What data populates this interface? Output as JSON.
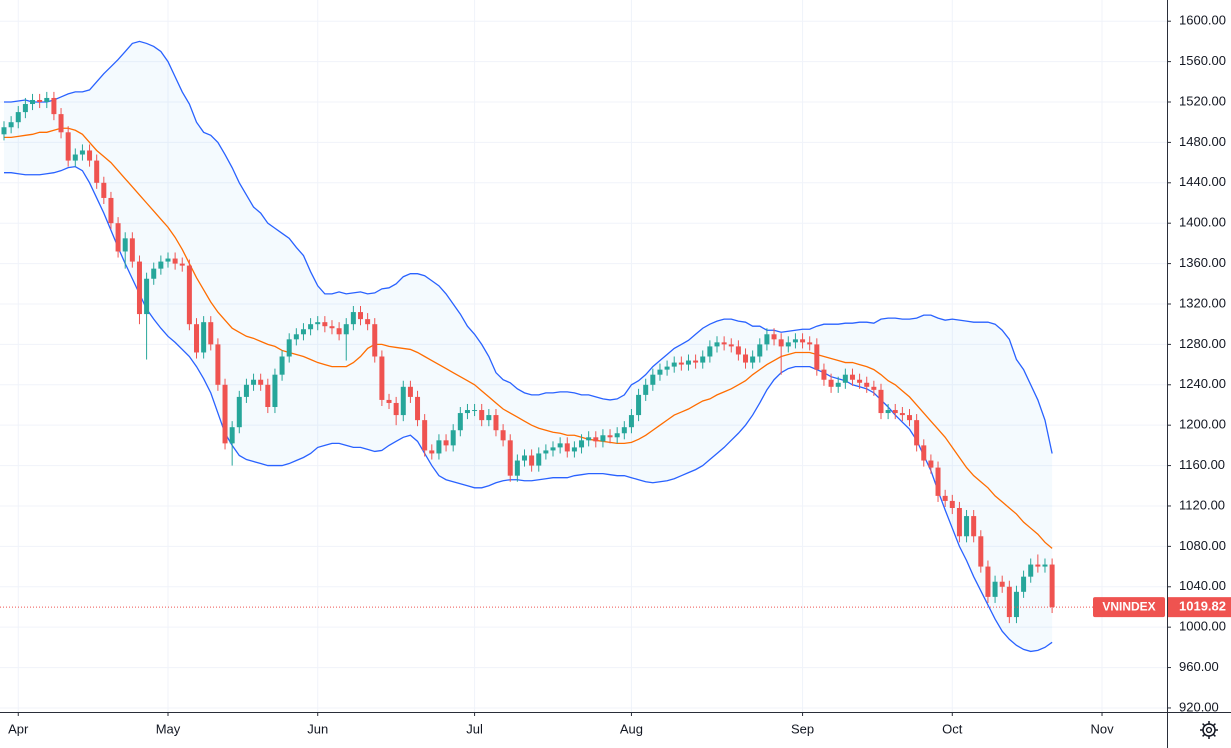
{
  "chart_data": {
    "type": "candlestick",
    "symbol": "VNINDEX",
    "up_color": "#26a69a",
    "down_color": "#ef5350",
    "band_color": "#2962ff",
    "middle_color": "#ff6d00",
    "band_fill": "#2196f3",
    "grid": true,
    "categories": [
      null,
      null,
      "Apr",
      null,
      null,
      null,
      null,
      null,
      null,
      null,
      null,
      null,
      null,
      null,
      null,
      null,
      null,
      null,
      null,
      null,
      null,
      null,
      null,
      "May",
      null,
      null,
      null,
      null,
      null,
      null,
      null,
      null,
      null,
      null,
      null,
      null,
      null,
      null,
      null,
      null,
      null,
      null,
      null,
      null,
      "Jun",
      null,
      null,
      null,
      null,
      null,
      null,
      null,
      null,
      null,
      null,
      null,
      null,
      null,
      null,
      null,
      null,
      null,
      null,
      null,
      null,
      null,
      "Jul",
      null,
      null,
      null,
      null,
      null,
      null,
      null,
      null,
      null,
      null,
      null,
      null,
      null,
      null,
      null,
      null,
      null,
      null,
      null,
      null,
      null,
      "Aug",
      null,
      null,
      null,
      null,
      null,
      null,
      null,
      null,
      null,
      null,
      null,
      null,
      null,
      null,
      null,
      null,
      null,
      null,
      null,
      null,
      null,
      null,
      null,
      "Sep",
      null,
      null,
      null,
      null,
      null,
      null,
      null,
      null,
      null,
      null,
      null,
      null,
      null,
      null,
      null,
      null,
      null,
      null,
      null,
      null,
      "Oct",
      null,
      null,
      null,
      null,
      null,
      null,
      null,
      null,
      null,
      null,
      null,
      null,
      null,
      null,
      null,
      null,
      null,
      null,
      null,
      null,
      "Nov"
    ],
    "open": [
      1488,
      1495,
      1500,
      1510,
      1518,
      1522,
      1520,
      1524,
      1508,
      1490,
      1462,
      1468,
      1472,
      1462,
      1440,
      1425,
      1400,
      1372,
      1385,
      1362,
      1310,
      1345,
      1355,
      1362,
      1365,
      1360,
      1358,
      1300,
      1272,
      1302,
      1280,
      1240,
      1182,
      1198,
      1228,
      1240,
      1245,
      1240,
      1218,
      1250,
      1268,
      1285,
      1290,
      1295,
      1300,
      1302,
      1298,
      1296,
      1290,
      1300,
      1312,
      1305,
      1300,
      1268,
      1225,
      1222,
      1210,
      1238,
      1228,
      1205,
      1175,
      1172,
      1185,
      1180,
      1195,
      1212,
      1215,
      1215,
      1205,
      1210,
      1195,
      1185,
      1150,
      1165,
      1170,
      1160,
      1172,
      1175,
      1178,
      1182,
      1174,
      1178,
      1185,
      1188,
      1184,
      1190,
      1188,
      1192,
      1198,
      1210,
      1230,
      1240,
      1250,
      1255,
      1258,
      1262,
      1260,
      1264,
      1262,
      1268,
      1278,
      1282,
      1280,
      1278,
      1270,
      1262,
      1268,
      1280,
      1290,
      1285,
      1278,
      1282,
      1285,
      1282,
      1280,
      1255,
      1245,
      1238,
      1242,
      1250,
      1245,
      1242,
      1238,
      1235,
      1212,
      1215,
      1212,
      1210,
      1205,
      1180,
      1165,
      1158,
      1130,
      1125,
      1118,
      1090,
      1110,
      1090,
      1060,
      1030,
      1045,
      1040,
      1010,
      1035,
      1050,
      1062,
      1060,
      1062,
      null,
      null,
      null,
      null,
      null,
      null,
      null
    ],
    "high": [
      1501,
      1506,
      1516,
      1524,
      1528,
      1528,
      1530,
      1530,
      1514,
      1496,
      1474,
      1478,
      1478,
      1468,
      1446,
      1431,
      1406,
      1391,
      1391,
      1368,
      1351,
      1361,
      1368,
      1371,
      1371,
      1366,
      1364,
      1306,
      1308,
      1308,
      1286,
      1246,
      1204,
      1234,
      1246,
      1251,
      1251,
      1246,
      1256,
      1274,
      1291,
      1296,
      1301,
      1306,
      1308,
      1308,
      1304,
      1302,
      1306,
      1318,
      1318,
      1311,
      1306,
      1274,
      1231,
      1228,
      1244,
      1244,
      1234,
      1211,
      1181,
      1191,
      1191,
      1201,
      1218,
      1221,
      1221,
      1221,
      1216,
      1216,
      1201,
      1191,
      1171,
      1176,
      1176,
      1178,
      1181,
      1184,
      1188,
      1188,
      1184,
      1191,
      1194,
      1194,
      1196,
      1196,
      1198,
      1204,
      1216,
      1236,
      1246,
      1256,
      1261,
      1264,
      1268,
      1268,
      1270,
      1270,
      1274,
      1284,
      1288,
      1288,
      1286,
      1284,
      1276,
      1274,
      1286,
      1296,
      1296,
      1291,
      1288,
      1291,
      1291,
      1288,
      1286,
      1261,
      1251,
      1248,
      1256,
      1256,
      1251,
      1248,
      1244,
      1241,
      1221,
      1221,
      1218,
      1216,
      1211,
      1186,
      1171,
      1164,
      1136,
      1131,
      1124,
      1116,
      1116,
      1096,
      1066,
      1051,
      1051,
      1046,
      1041,
      1056,
      1068,
      1072,
      1068,
      1068,
      null,
      null,
      null,
      null,
      null,
      null,
      null
    ],
    "low": [
      1482,
      1489,
      1494,
      1504,
      1512,
      1514,
      1514,
      1502,
      1484,
      1456,
      1456,
      1462,
      1456,
      1434,
      1419,
      1394,
      1366,
      1355,
      1356,
      1300,
      1265,
      1339,
      1349,
      1356,
      1354,
      1352,
      1294,
      1266,
      1266,
      1274,
      1234,
      1176,
      1160,
      1192,
      1222,
      1234,
      1234,
      1212,
      1212,
      1244,
      1262,
      1279,
      1284,
      1289,
      1294,
      1292,
      1290,
      1284,
      1264,
      1294,
      1299,
      1294,
      1262,
      1219,
      1216,
      1200,
      1204,
      1222,
      1199,
      1169,
      1166,
      1166,
      1174,
      1174,
      1189,
      1206,
      1209,
      1199,
      1199,
      1189,
      1179,
      1144,
      1144,
      1159,
      1154,
      1154,
      1166,
      1169,
      1172,
      1168,
      1168,
      1172,
      1179,
      1178,
      1178,
      1182,
      1182,
      1186,
      1192,
      1204,
      1224,
      1234,
      1244,
      1249,
      1252,
      1254,
      1254,
      1256,
      1256,
      1262,
      1272,
      1274,
      1272,
      1264,
      1256,
      1256,
      1262,
      1274,
      1279,
      1250,
      1272,
      1276,
      1276,
      1274,
      1249,
      1239,
      1232,
      1232,
      1236,
      1239,
      1236,
      1232,
      1229,
      1206,
      1206,
      1206,
      1204,
      1199,
      1174,
      1159,
      1152,
      1124,
      1119,
      1112,
      1084,
      1084,
      1084,
      1054,
      1024,
      1024,
      1034,
      1004,
      1004,
      1029,
      1044,
      1054,
      1054,
      1014,
      null,
      null,
      null,
      null,
      null,
      null,
      null
    ],
    "close": [
      1495,
      1500,
      1510,
      1518,
      1522,
      1520,
      1524,
      1508,
      1490,
      1462,
      1468,
      1472,
      1462,
      1440,
      1425,
      1400,
      1372,
      1385,
      1362,
      1310,
      1345,
      1355,
      1362,
      1365,
      1360,
      1358,
      1300,
      1272,
      1302,
      1280,
      1240,
      1182,
      1198,
      1228,
      1240,
      1245,
      1240,
      1218,
      1250,
      1268,
      1285,
      1290,
      1295,
      1300,
      1302,
      1298,
      1296,
      1290,
      1300,
      1312,
      1305,
      1300,
      1268,
      1225,
      1222,
      1210,
      1238,
      1228,
      1205,
      1175,
      1172,
      1185,
      1180,
      1195,
      1212,
      1215,
      1215,
      1205,
      1210,
      1195,
      1185,
      1150,
      1165,
      1170,
      1160,
      1172,
      1175,
      1178,
      1182,
      1174,
      1178,
      1185,
      1188,
      1184,
      1190,
      1188,
      1192,
      1198,
      1210,
      1230,
      1240,
      1250,
      1255,
      1258,
      1262,
      1260,
      1264,
      1262,
      1268,
      1278,
      1282,
      1280,
      1278,
      1270,
      1262,
      1268,
      1280,
      1290,
      1285,
      1278,
      1282,
      1285,
      1282,
      1280,
      1255,
      1245,
      1238,
      1242,
      1250,
      1245,
      1242,
      1238,
      1235,
      1212,
      1215,
      1212,
      1210,
      1205,
      1180,
      1165,
      1158,
      1130,
      1125,
      1118,
      1090,
      1110,
      1090,
      1060,
      1030,
      1045,
      1040,
      1010,
      1035,
      1050,
      1062,
      1060,
      1062,
      1019.82,
      null,
      null,
      null,
      null,
      null,
      null,
      null
    ],
    "upper": [
      1520,
      1520,
      1521,
      1522,
      1520,
      1520,
      1520,
      1522,
      1525,
      1528,
      1530,
      1530,
      1532,
      1540,
      1548,
      1555,
      1562,
      1570,
      1578,
      1580,
      1578,
      1575,
      1570,
      1560,
      1545,
      1530,
      1518,
      1500,
      1490,
      1487,
      1480,
      1468,
      1455,
      1440,
      1428,
      1416,
      1410,
      1400,
      1395,
      1390,
      1385,
      1376,
      1368,
      1352,
      1338,
      1330,
      1330,
      1332,
      1330,
      1331,
      1332,
      1330,
      1331,
      1335,
      1336,
      1340,
      1347,
      1350,
      1350,
      1348,
      1343,
      1338,
      1330,
      1320,
      1310,
      1298,
      1290,
      1280,
      1268,
      1252,
      1245,
      1242,
      1236,
      1232,
      1230,
      1230,
      1232,
      1232,
      1233,
      1233,
      1232,
      1230,
      1230,
      1228,
      1226,
      1225,
      1226,
      1230,
      1240,
      1244,
      1250,
      1258,
      1264,
      1270,
      1276,
      1280,
      1284,
      1290,
      1296,
      1300,
      1303,
      1305,
      1305,
      1303,
      1302,
      1298,
      1298,
      1294,
      1294,
      1292,
      1293,
      1294,
      1295,
      1295,
      1298,
      1300,
      1300,
      1300,
      1301,
      1301,
      1302,
      1302,
      1301,
      1305,
      1306,
      1306,
      1305,
      1305,
      1306,
      1309,
      1309,
      1306,
      1304,
      1305,
      1304,
      1303,
      1302,
      1302,
      1302,
      1300,
      1294,
      1285,
      1265,
      1255,
      1240,
      1225,
      1205,
      1172,
      null,
      null,
      null,
      null,
      null,
      null,
      null
    ],
    "middle": [
      1485,
      1485,
      1486,
      1487,
      1488,
      1490,
      1490,
      1492,
      1494,
      1494,
      1492,
      1488,
      1480,
      1472,
      1466,
      1460,
      1452,
      1444,
      1436,
      1428,
      1420,
      1412,
      1404,
      1396,
      1386,
      1374,
      1360,
      1346,
      1334,
      1322,
      1312,
      1304,
      1296,
      1292,
      1288,
      1286,
      1283,
      1280,
      1278,
      1274,
      1272,
      1270,
      1268,
      1265,
      1262,
      1260,
      1258,
      1258,
      1258,
      1262,
      1268,
      1276,
      1280,
      1280,
      1278,
      1277,
      1276,
      1275,
      1272,
      1268,
      1264,
      1260,
      1256,
      1252,
      1248,
      1244,
      1240,
      1234,
      1228,
      1222,
      1216,
      1212,
      1208,
      1204,
      1200,
      1197,
      1195,
      1193,
      1192,
      1190,
      1190,
      1188,
      1186,
      1185,
      1184,
      1183,
      1182,
      1182,
      1183,
      1186,
      1190,
      1195,
      1200,
      1205,
      1210,
      1213,
      1216,
      1220,
      1224,
      1226,
      1230,
      1233,
      1236,
      1240,
      1244,
      1250,
      1255,
      1260,
      1264,
      1268,
      1270,
      1272,
      1272,
      1272,
      1270,
      1268,
      1266,
      1264,
      1262,
      1262,
      1260,
      1258,
      1255,
      1250,
      1244,
      1240,
      1234,
      1228,
      1220,
      1212,
      1204,
      1196,
      1188,
      1178,
      1168,
      1158,
      1150,
      1144,
      1138,
      1130,
      1124,
      1118,
      1112,
      1104,
      1098,
      1092,
      1084,
      1078,
      null,
      null,
      null,
      null,
      null,
      null,
      null
    ],
    "lower": [
      1450,
      1450,
      1449,
      1448,
      1448,
      1448,
      1449,
      1450,
      1452,
      1455,
      1456,
      1452,
      1440,
      1425,
      1410,
      1393,
      1376,
      1360,
      1345,
      1330,
      1315,
      1305,
      1296,
      1288,
      1282,
      1275,
      1268,
      1258,
      1246,
      1232,
      1212,
      1192,
      1180,
      1170,
      1166,
      1164,
      1162,
      1160,
      1160,
      1160,
      1162,
      1165,
      1168,
      1172,
      1178,
      1180,
      1182,
      1182,
      1180,
      1178,
      1178,
      1176,
      1174,
      1175,
      1180,
      1184,
      1188,
      1190,
      1184,
      1172,
      1160,
      1150,
      1146,
      1144,
      1142,
      1140,
      1138,
      1138,
      1140,
      1143,
      1145,
      1146,
      1146,
      1145,
      1145,
      1146,
      1147,
      1148,
      1148,
      1148,
      1150,
      1151,
      1152,
      1152,
      1152,
      1151,
      1150,
      1150,
      1148,
      1146,
      1144,
      1143,
      1144,
      1145,
      1147,
      1150,
      1153,
      1156,
      1160,
      1166,
      1172,
      1178,
      1185,
      1192,
      1200,
      1210,
      1222,
      1235,
      1245,
      1252,
      1256,
      1258,
      1258,
      1258,
      1255,
      1252,
      1248,
      1246,
      1244,
      1240,
      1238,
      1236,
      1232,
      1225,
      1218,
      1210,
      1203,
      1196,
      1185,
      1170,
      1155,
      1135,
      1116,
      1098,
      1080,
      1066,
      1050,
      1036,
      1022,
      1008,
      996,
      988,
      982,
      978,
      976,
      977,
      980,
      985,
      null,
      null,
      null,
      null,
      null,
      null,
      null
    ],
    "ylim": [
      916,
      1621
    ],
    "yticks": [
      {
        "value": 920,
        "label": "920.00"
      },
      {
        "value": 960,
        "label": "960.00"
      },
      {
        "value": 1000,
        "label": "1000.00"
      },
      {
        "value": 1040,
        "label": "1040.00"
      },
      {
        "value": 1080,
        "label": "1080.00"
      },
      {
        "value": 1120,
        "label": "1120.00"
      },
      {
        "value": 1160,
        "label": "1160.00"
      },
      {
        "value": 1200,
        "label": "1200.00"
      },
      {
        "value": 1240,
        "label": "1240.00"
      },
      {
        "value": 1280,
        "label": "1280.00"
      },
      {
        "value": 1320,
        "label": "1320.00"
      },
      {
        "value": 1360,
        "label": "1360.00"
      },
      {
        "value": 1400,
        "label": "1400.00"
      },
      {
        "value": 1440,
        "label": "1440.00"
      },
      {
        "value": 1480,
        "label": "1480.00"
      },
      {
        "value": 1520,
        "label": "1520.00"
      },
      {
        "value": 1560,
        "label": "1560.00"
      },
      {
        "value": 1600,
        "label": "1600.00"
      }
    ]
  }
}
